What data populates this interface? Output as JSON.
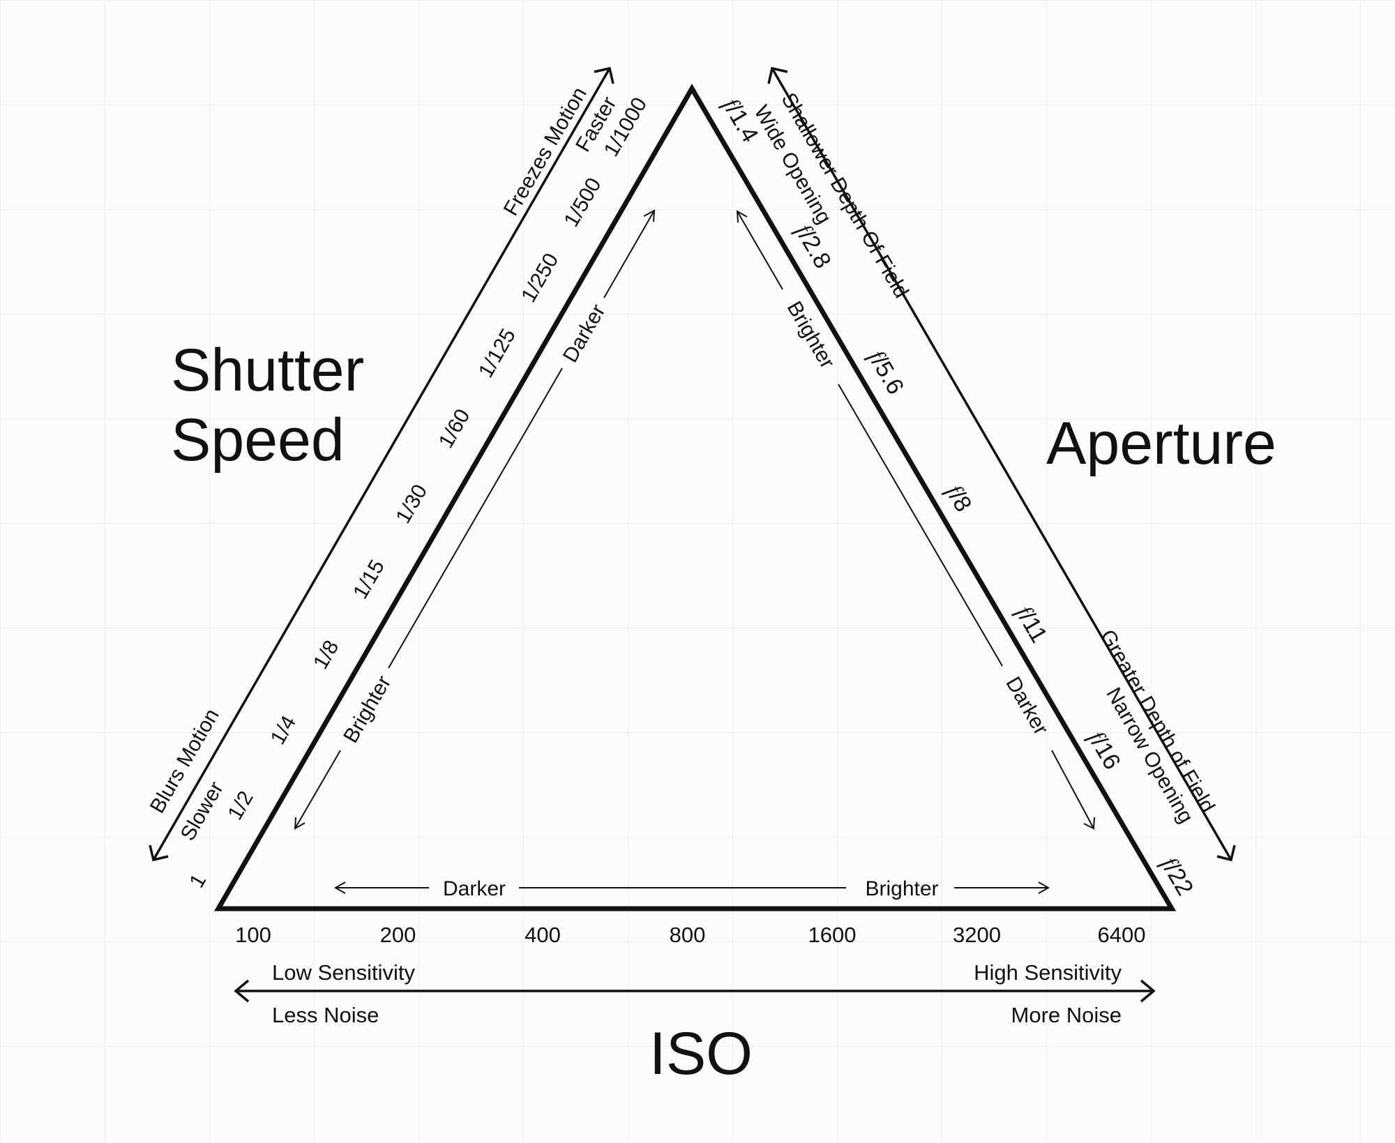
{
  "titles": {
    "shutter_line1": "Shutter",
    "shutter_line2": "Speed",
    "aperture": "Aperture",
    "iso": "ISO"
  },
  "shutter": {
    "speeds": [
      "1",
      "1/2",
      "1/4",
      "1/8",
      "1/15",
      "1/30",
      "1/60",
      "1/125",
      "1/250",
      "1/500",
      "1/1000"
    ],
    "outer_top_1": "Freezes Motion",
    "outer_top_2": "Faster",
    "outer_bottom_1": "Blurs Motion",
    "outer_bottom_2": "Slower",
    "inner_top": "Darker",
    "inner_bottom": "Brighter"
  },
  "aperture": {
    "f_symbol": "f",
    "stops": [
      "/1.4",
      "/2.8",
      "/5.6",
      "/8",
      "/11",
      "/16",
      "/22"
    ],
    "outer_top_1": "Shallower Depth Of Field",
    "outer_top_2": "Wide Opening",
    "outer_bottom_1": "Greater Depth of Field",
    "outer_bottom_2": "Narrow Opening",
    "inner_top": "Brighter",
    "inner_bottom": "Darker"
  },
  "iso": {
    "values": [
      "100",
      "200",
      "400",
      "800",
      "1600",
      "3200",
      "6400"
    ],
    "inner_left": "Darker",
    "inner_right": "Brighter",
    "low_sensitivity": "Low Sensitivity",
    "less_noise": "Less Noise",
    "high_sensitivity": "High Sensitivity",
    "more_noise": "More Noise"
  }
}
